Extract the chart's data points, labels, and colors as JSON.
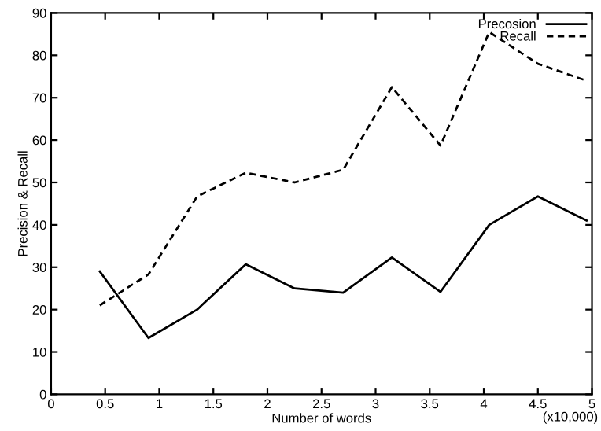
{
  "chart_data": {
    "type": "line",
    "xlabel": "Number of words",
    "ylabel": "Precision & Recall",
    "x": [
      0.45,
      0.9,
      1.35,
      1.8,
      2.25,
      2.7,
      3.15,
      3.6,
      4.05,
      4.5,
      4.95
    ],
    "series": [
      {
        "name": "Precosion",
        "color": "#000000",
        "line_style": "solid",
        "values": [
          29,
          13.3,
          20,
          30.7,
          25,
          24,
          32.3,
          24.2,
          40,
          46.7,
          41
        ]
      },
      {
        "name": "Recall",
        "color": "#000000",
        "line_style": "dashed",
        "values": [
          21,
          28.3,
          46.7,
          52.3,
          50,
          53,
          72.5,
          58.7,
          85.5,
          78,
          74
        ]
      }
    ],
    "xlim": [
      0,
      5
    ],
    "xticks": [
      0,
      0.5,
      1,
      1.5,
      2,
      2.5,
      3,
      3.5,
      4,
      4.5,
      5
    ],
    "ylim": [
      0,
      90
    ],
    "yticks": [
      0,
      10,
      20,
      30,
      40,
      50,
      60,
      70,
      80,
      90
    ],
    "annotations": [
      "(x10,000)"
    ],
    "grid": false,
    "legend": "top right",
    "marker": "none"
  }
}
